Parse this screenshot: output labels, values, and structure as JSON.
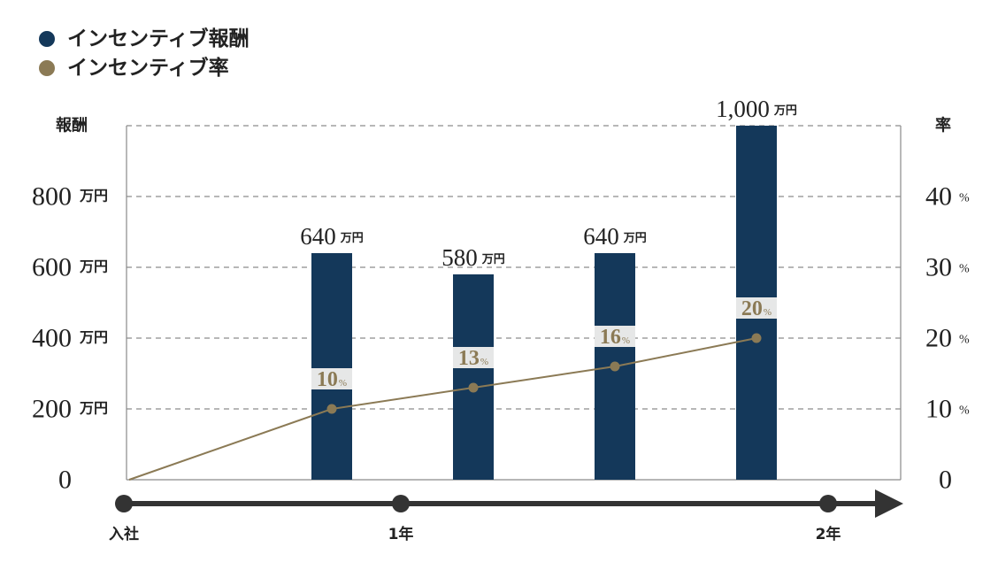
{
  "chart_data": {
    "type": "bar",
    "legend": "top-left",
    "grid": true,
    "series": [
      {
        "name": "インセンティブ報酬",
        "type": "bar",
        "axis": "left",
        "color": "#14385a",
        "values": [
          640,
          580,
          640,
          1000
        ],
        "data_labels": [
          "640",
          "580",
          "640",
          "1,000"
        ],
        "unit": "万円"
      },
      {
        "name": "インセンティブ率",
        "type": "line",
        "axis": "right",
        "color": "#8b7a55",
        "start_value": 0,
        "values": [
          10,
          13,
          16,
          20
        ],
        "unit": "%"
      }
    ],
    "y_left": {
      "label": "報酬",
      "range": [
        0,
        1000
      ],
      "ticks": [
        0,
        200,
        400,
        600,
        800
      ],
      "unit": "万円"
    },
    "y_right": {
      "label": "率",
      "range": [
        0,
        50
      ],
      "ticks": [
        0,
        10,
        20,
        30,
        40
      ],
      "unit": "%"
    },
    "timeline": {
      "labels": [
        "入社",
        "1年",
        "2年"
      ],
      "color": "#333333"
    }
  }
}
